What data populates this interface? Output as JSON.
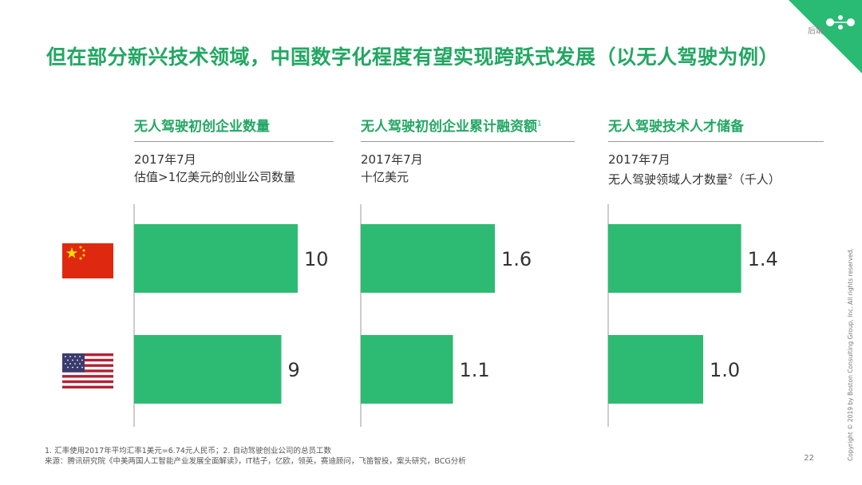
{
  "header": {
    "corner_label": "后端",
    "corner_color": "#29ba74"
  },
  "title": "但在部分新兴技术领域，中国数字化程度有望实现跨跃式发展（以无人驾驶为例）",
  "panels": [
    {
      "title": "无人驾驶初创企业数量",
      "title_sup": "",
      "sub1": "2017年7月",
      "sub2": "估值>1亿美元的创业公司数量",
      "sub2_sup": "",
      "sub2_tail": ""
    },
    {
      "title": "无人驾驶初创企业累计融资额",
      "title_sup": "1",
      "sub1": "2017年7月",
      "sub2": "十亿美元",
      "sub2_sup": "",
      "sub2_tail": ""
    },
    {
      "title": "无人驾驶技术人才储备",
      "title_sup": "",
      "sub1": "2017年7月",
      "sub2": "无人驾驶领域人才数量",
      "sub2_sup": "2",
      "sub2_tail": "（千人）"
    }
  ],
  "countries": [
    "china-flag-icon",
    "usa-flag-icon"
  ],
  "chart_data": [
    {
      "type": "bar",
      "title": "无人驾驶初创企业数量",
      "categories": [
        "China",
        "USA"
      ],
      "values": [
        10,
        9
      ],
      "labels": [
        "10",
        "9"
      ],
      "color": "#2dbb73"
    },
    {
      "type": "bar",
      "title": "无人驾驶初创企业累计融资额",
      "categories": [
        "China",
        "USA"
      ],
      "values": [
        1.6,
        1.1
      ],
      "labels": [
        "1.6",
        "1.1"
      ],
      "color": "#2dbb73"
    },
    {
      "type": "bar",
      "title": "无人驾驶技术人才储备",
      "categories": [
        "China",
        "USA"
      ],
      "values": [
        1.4,
        1.0
      ],
      "labels": [
        "1.4",
        "1.0"
      ],
      "color": "#2dbb73"
    }
  ],
  "footnotes": {
    "line1": "1. 汇率使用2017年平均汇率1美元=6.74元人民币；2. 自动驾驶创业公司的总员工数",
    "line2": "来源：腾讯研究院《中美两国人工智能产业发展全面解读》，IT桔子，亿欧，领英，赛迪顾问，飞笛智投，案头研究，BCG分析"
  },
  "page_number": "22",
  "copyright": "Copyright © 2019 by Boston Consulting Group, Inc. All rights reserved."
}
